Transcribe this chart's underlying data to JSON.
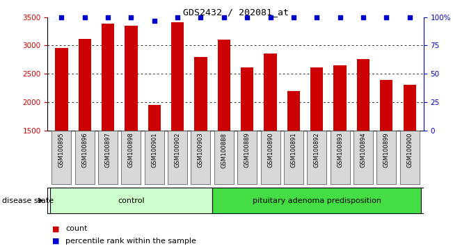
{
  "title": "GDS2432 / 202081_at",
  "samples": [
    "GSM100895",
    "GSM100896",
    "GSM100897",
    "GSM100898",
    "GSM100901",
    "GSM100902",
    "GSM100903",
    "GSM100888",
    "GSM100889",
    "GSM100890",
    "GSM100891",
    "GSM100892",
    "GSM100893",
    "GSM100894",
    "GSM100899",
    "GSM100900"
  ],
  "counts": [
    2960,
    3120,
    3390,
    3350,
    1950,
    3410,
    2800,
    3110,
    2610,
    2860,
    2190,
    2610,
    2650,
    2760,
    2390,
    2300
  ],
  "percentiles": [
    100,
    100,
    100,
    100,
    97,
    100,
    100,
    100,
    100,
    100,
    100,
    100,
    100,
    100,
    100,
    100
  ],
  "groups": [
    {
      "label": "control",
      "start": 0,
      "end": 7,
      "color": "#ccffcc"
    },
    {
      "label": "pituitary adenoma predisposition",
      "start": 7,
      "end": 16,
      "color": "#44dd44"
    }
  ],
  "ylim": [
    1500,
    3500
  ],
  "yticks_left": [
    1500,
    2000,
    2500,
    3000,
    3500
  ],
  "yticks_right": [
    0,
    25,
    50,
    75,
    100
  ],
  "right_ylim": [
    0,
    100
  ],
  "bar_color": "#cc0000",
  "percentile_color": "#0000cc",
  "left_tick_color": "#cc0000",
  "right_tick_color": "#0000cc",
  "dotted_grid_vals": [
    2000,
    2500,
    3000
  ],
  "disease_state_label": "disease state",
  "legend_count_label": "count",
  "legend_percentile_label": "percentile rank within the sample"
}
